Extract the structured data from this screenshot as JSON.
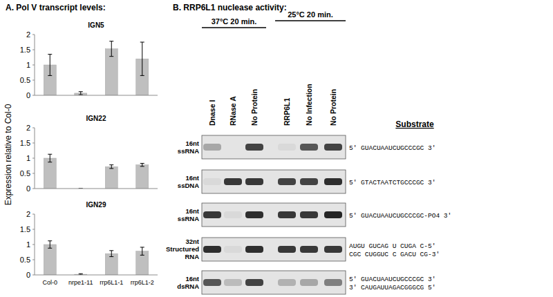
{
  "panel_a": {
    "title": "A. Pol V transcript levels:",
    "ylabel": "Expression relative to Col-0"
  },
  "chart_data": [
    {
      "type": "bar",
      "title": "IGN5",
      "categories": [
        null,
        null,
        null,
        null
      ],
      "values": [
        1.0,
        0.07,
        1.53,
        1.2
      ],
      "errors": [
        0.35,
        0.05,
        0.25,
        0.55
      ],
      "color": "#bfbfbf",
      "ylim": [
        0,
        2
      ],
      "yticks": [
        0,
        0.5,
        1,
        1.5,
        2
      ],
      "grid": false
    },
    {
      "type": "bar",
      "title": "IGN22",
      "categories": [
        null,
        null,
        null,
        null
      ],
      "values": [
        1.0,
        0.0,
        0.72,
        0.78
      ],
      "errors": [
        0.13,
        0.0,
        0.06,
        0.05
      ],
      "color": "#bfbfbf",
      "ylim": [
        0,
        2
      ],
      "yticks": [
        0,
        0.5,
        1,
        1.5,
        2
      ],
      "grid": false
    },
    {
      "type": "bar",
      "title": "IGN29",
      "categories": [
        "Col-0",
        "nrpe1-11",
        "rrp6L1-1",
        "rrp6L1-2"
      ],
      "values": [
        1.0,
        0.02,
        0.7,
        0.78
      ],
      "errors": [
        0.12,
        0.02,
        0.1,
        0.13
      ],
      "color": "#bfbfbf",
      "ylim": [
        0,
        2
      ],
      "yticks": [
        0,
        0.5,
        1,
        1.5,
        2
      ],
      "grid": false
    }
  ],
  "panel_b": {
    "title": "B. RRP6L1 nuclease activity:",
    "conditions": [
      {
        "label": "37°C 20 min.",
        "lanes": [
          "Dnase I",
          "RNase A",
          "No Protein"
        ]
      },
      {
        "label": "25°C 20 min.",
        "lanes": [
          "RRP6L1",
          "No Infection",
          "No Protein"
        ]
      }
    ],
    "substrate_header": "Substrate",
    "rows": [
      {
        "label": "16nt ssRNA",
        "substrate": [
          "5' GUACUAAUCUGCCCGC 3'"
        ],
        "bands": [
          0.3,
          0.0,
          0.8,
          0.05,
          0.7,
          0.8
        ]
      },
      {
        "label": "16nt ssDNA",
        "substrate": [
          "5' GTACTAATCTGCCCGC 3'"
        ],
        "bands": [
          0.05,
          0.85,
          0.85,
          0.8,
          0.8,
          0.9
        ]
      },
      {
        "label": "16nt ssRNA",
        "substrate": [
          "5' GUACUAAUCUGCCCGC-PO4 3'"
        ],
        "bands": [
          0.85,
          0.05,
          0.9,
          0.85,
          0.85,
          0.95
        ]
      },
      {
        "label": "32nt Structured RNA",
        "substrate": [
          "AUGU GUCAG U CUGA C-5'",
          "CGC CUGGUC C GACU CG-3'"
        ],
        "bands": [
          0.9,
          0.05,
          0.9,
          0.85,
          0.85,
          0.85
        ]
      },
      {
        "label": "16nt dsRNA",
        "substrate": [
          "5' GUACUAAUCUGCCCGC 3'",
          "3' CAUGAUUAGACGGGCG 5'"
        ],
        "bands": [
          0.7,
          0.2,
          0.8,
          0.25,
          0.3,
          0.5
        ]
      }
    ]
  }
}
